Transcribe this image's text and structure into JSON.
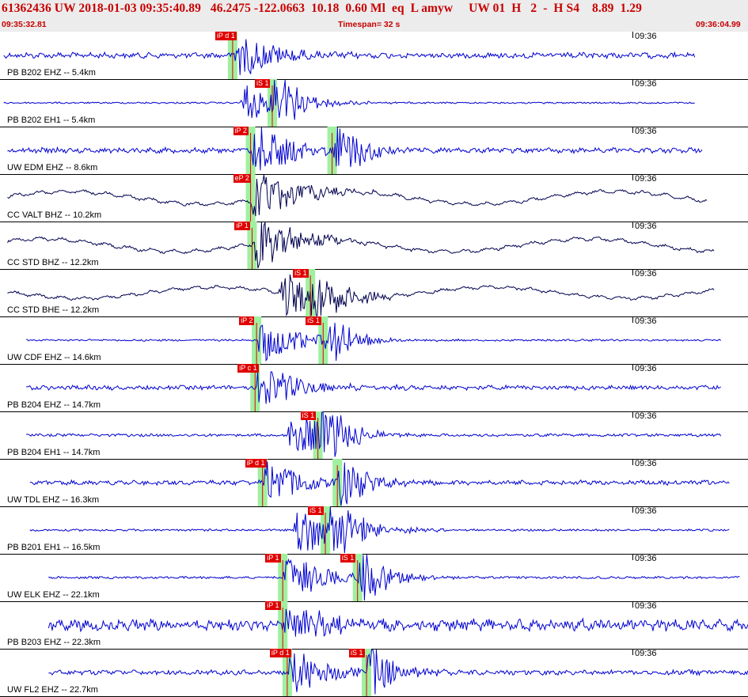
{
  "header": {
    "title": "61362436 UW 2018-01-03 09:35:40.89   46.2475 -122.0663  10.18  0.60 Ml  eq  L amyw     UW 01  H   2  -  H S4    8.89  1.29",
    "start_time": "09:35:32.81",
    "timespan": "Timespan=  32 s",
    "end_time": "09:36:04.99"
  },
  "time_label": "09:36",
  "colors": {
    "trace_blue": "#0000d0",
    "trace_dark": "#000050",
    "pick": "#e00000",
    "band": "#a0f0a0",
    "title": "#c80000",
    "header_bg": "#ececec"
  },
  "traces": [
    {
      "label": "PB B202 EHZ -- 5.4km",
      "color": "#0000d0",
      "style": "local",
      "p_label": "iP d 1",
      "p_pos": 0.311,
      "s_label": "",
      "s_pos": null,
      "start": 0.005,
      "end": 0.93,
      "amp": 0.6,
      "noise": 0.18
    },
    {
      "label": "PB B202 EH1 -- 5.4km",
      "color": "#0000d0",
      "style": "local",
      "p_label": "",
      "p_pos": null,
      "s_label": "iS 1",
      "s_pos": 0.364,
      "start": 0.005,
      "end": 0.93,
      "amp": 0.6,
      "noise": 0.02
    },
    {
      "label": "UW EDM EHZ -- 8.6km",
      "color": "#0000d0",
      "style": "local",
      "p_label": "iP 2",
      "p_pos": 0.335,
      "s_label": "",
      "s_pos": 0.444,
      "start": 0.01,
      "end": 0.94,
      "amp": 0.75,
      "noise": 0.12
    },
    {
      "label": "CC VALT BHZ -- 10.2km",
      "color": "#000050",
      "style": "broadband",
      "p_label": "eP 2",
      "p_pos": 0.335,
      "s_label": "",
      "s_pos": null,
      "start": 0.01,
      "end": 0.945,
      "amp": 0.8,
      "noise": 0.25
    },
    {
      "label": "CC STD BHZ -- 12.2km",
      "color": "#000050",
      "style": "broadband",
      "p_label": "iP 1",
      "p_pos": 0.337,
      "s_label": "",
      "s_pos": null,
      "start": 0.01,
      "end": 0.955,
      "amp": 0.8,
      "noise": 0.35
    },
    {
      "label": "CC STD BHE -- 12.2km",
      "color": "#000050",
      "style": "broadband",
      "p_label": "",
      "p_pos": null,
      "s_label": "iS 1",
      "s_pos": 0.415,
      "start": 0.01,
      "end": 0.955,
      "amp": 0.7,
      "noise": 0.2
    },
    {
      "label": "UW CDF EHZ -- 14.6km",
      "color": "#0000d0",
      "style": "local",
      "p_label": "iP 2",
      "p_pos": 0.343,
      "s_label": "iS 1",
      "s_pos": 0.432,
      "start": 0.035,
      "end": 0.965,
      "amp": 0.6,
      "noise": 0.03
    },
    {
      "label": "PB B204 EHZ -- 14.7km",
      "color": "#0000d0",
      "style": "local",
      "p_label": "iP c 1",
      "p_pos": 0.341,
      "s_label": "",
      "s_pos": null,
      "start": 0.035,
      "end": 0.965,
      "amp": 0.65,
      "noise": 0.12
    },
    {
      "label": "PB B204 EH1 -- 14.7km",
      "color": "#0000d0",
      "style": "local",
      "p_label": "",
      "p_pos": null,
      "s_label": "iS 1",
      "s_pos": 0.425,
      "start": 0.035,
      "end": 0.965,
      "amp": 0.65,
      "noise": 0.06
    },
    {
      "label": "UW TDL EHZ -- 16.3km",
      "color": "#0000d0",
      "style": "local",
      "p_label": "iP d 1",
      "p_pos": 0.351,
      "s_label": "",
      "s_pos": 0.451,
      "start": 0.04,
      "end": 0.975,
      "amp": 0.65,
      "noise": 0.13
    },
    {
      "label": "PB B201 EH1 -- 16.5km",
      "color": "#0000d0",
      "style": "local",
      "p_label": "",
      "p_pos": null,
      "s_label": "iS 1",
      "s_pos": 0.435,
      "start": 0.04,
      "end": 0.975,
      "amp": 0.75,
      "noise": 0.02
    },
    {
      "label": "UW ELK EHZ -- 22.1km",
      "color": "#0000d0",
      "style": "local",
      "p_label": "iP 1",
      "p_pos": 0.378,
      "s_label": "iS 1",
      "s_pos": 0.478,
      "start": 0.065,
      "end": 0.99,
      "amp": 0.65,
      "noise": 0.04
    },
    {
      "label": "PB B203 EHZ -- 22.3km",
      "color": "#0000d0",
      "style": "local",
      "p_label": "iP 1",
      "p_pos": 0.378,
      "s_label": "",
      "s_pos": null,
      "start": 0.065,
      "end": 1.0,
      "amp": 0.7,
      "noise": 0.35
    },
    {
      "label": "UW FL2 EHZ -- 22.7km",
      "color": "#0000d0",
      "style": "local",
      "p_label": "iP d 1",
      "p_pos": 0.384,
      "s_label": "iS 1",
      "s_pos": 0.49,
      "start": 0.065,
      "end": 1.0,
      "amp": 0.6,
      "noise": 0.15
    }
  ]
}
